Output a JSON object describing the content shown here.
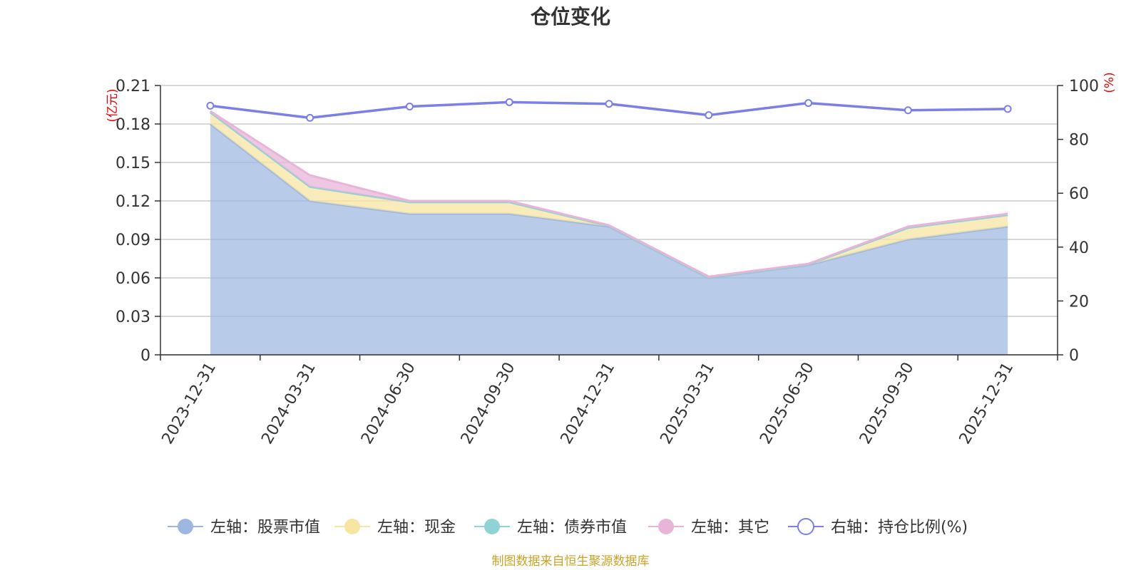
{
  "chart_data": {
    "type": "area",
    "title": "仓位变化",
    "categories": [
      "2023-12-31",
      "2024-03-31",
      "2024-06-30",
      "2024-09-30",
      "2024-12-31",
      "2025-03-31",
      "2025-06-30",
      "2025-09-30",
      "2025-12-31"
    ],
    "left_axis": {
      "unit": "(亿元)",
      "ylim": [
        0,
        0.21
      ],
      "ticks": [
        "0",
        "0.03",
        "0.06",
        "0.09",
        "0.12",
        "0.15",
        "0.18",
        "0.21"
      ]
    },
    "right_axis": {
      "unit": "(%)",
      "ylim": [
        0,
        100
      ],
      "ticks": [
        "0",
        "20",
        "40",
        "60",
        "80",
        "100"
      ]
    },
    "grid": true,
    "legend_position": "bottom",
    "series": [
      {
        "name": "左轴：股票市值",
        "axis": "left",
        "stack": true,
        "color": "#9db7e0",
        "values": [
          0.18,
          0.12,
          0.11,
          0.11,
          0.1,
          0.06,
          0.07,
          0.09,
          0.1
        ]
      },
      {
        "name": "左轴：现金",
        "axis": "left",
        "stack": true,
        "color": "#f7e6a3",
        "values": [
          0.009,
          0.011,
          0.009,
          0.009,
          0.0005,
          0.0005,
          0.0005,
          0.009,
          0.009
        ]
      },
      {
        "name": "左轴：债券市值",
        "axis": "left",
        "stack": true,
        "color": "#8fd3d5",
        "values": [
          0,
          0,
          0,
          0,
          0,
          0,
          0,
          0,
          0
        ]
      },
      {
        "name": "左轴：其它",
        "axis": "left",
        "stack": true,
        "color": "#e8b4d8",
        "values": [
          0.001,
          0.009,
          0.001,
          0.001,
          0.0005,
          0.0005,
          0.0005,
          0.001,
          0.001
        ]
      },
      {
        "name": "右轴：持仓比例(%)",
        "axis": "right",
        "type": "line",
        "color": "#7b7fe8",
        "values": [
          92.5,
          88.0,
          92.2,
          93.8,
          93.2,
          89.0,
          93.5,
          90.8,
          91.3
        ]
      }
    ]
  },
  "footer": {
    "source": "制图数据来自恒生聚源数据库"
  }
}
